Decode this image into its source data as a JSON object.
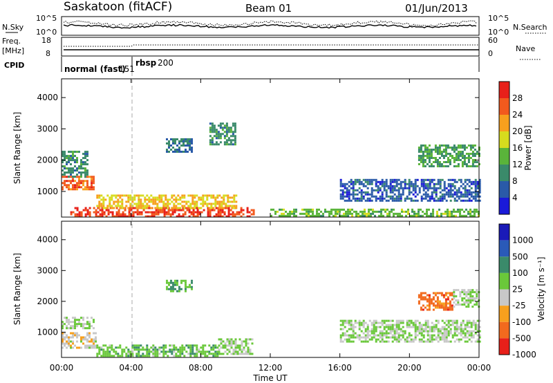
{
  "header": {
    "station": "Saskatoon (fitACF)",
    "beam": "Beam 01",
    "date": "01/Jun/2013"
  },
  "noise_panel": {
    "left_label": "N.Sky",
    "right_label": "N.Search",
    "left_ticks": [
      "10^5",
      "10^0"
    ],
    "right_ticks": [
      "10^5",
      "10^0"
    ]
  },
  "freq_panel": {
    "left_label": "Freq.",
    "left_unit": "[MHz]",
    "right_label": "Nave",
    "left_ticks": [
      "18",
      "8"
    ],
    "right_ticks": [
      "60",
      "0"
    ]
  },
  "cpid_panel": {
    "label": "CPID",
    "modes": [
      {
        "text": "normal (fast)",
        "code": "151"
      },
      {
        "text": "rbsp",
        "code": "200"
      }
    ]
  },
  "power_panel": {
    "ylabel": "Slant Range [km]",
    "colorbar_label": "Power [dB]",
    "colorbar_ticks": [
      "28",
      "24",
      "20",
      "16",
      "12",
      "8",
      "4"
    ],
    "colorbar_colors": [
      "#e8201a",
      "#f25a1e",
      "#f7a01e",
      "#d7dc1e",
      "#5ab43a",
      "#3a8a6a",
      "#2a5aa8",
      "#1a1ad8"
    ]
  },
  "velocity_panel": {
    "ylabel": "Slant Range [km]",
    "colorbar_label": "Velocity [m s⁻¹]",
    "colorbar_ticks": [
      "1000",
      "500",
      "100",
      "25",
      "-25",
      "-100",
      "-500",
      "-1000"
    ],
    "colorbar_colors": [
      "#1a1ab8",
      "#2a5ab8",
      "#3a8a6a",
      "#6ac83a",
      "#c8c8c8",
      "#f7a01e",
      "#f26a1e",
      "#e8201a"
    ]
  },
  "x_axis": {
    "label": "Time UT",
    "ticks": [
      "00:00",
      "04:00",
      "08:00",
      "12:00",
      "16:00",
      "20:00",
      "00:00"
    ]
  },
  "chart_data": [
    {
      "type": "heatmap",
      "title": "Power",
      "xlabel": "Time UT",
      "ylabel": "Slant Range [km]",
      "xlim_hours": [
        0,
        24
      ],
      "ylim": [
        180,
        4600
      ],
      "yticks": [
        1000,
        2000,
        3000,
        4000
      ],
      "colorbar": "Power [dB]",
      "color_range": [
        0,
        32
      ],
      "regions": [
        {
          "t0": 0.0,
          "t1": 1.8,
          "r0": 1100,
          "r1": 1500,
          "value": 26
        },
        {
          "t0": 0.0,
          "t1": 1.5,
          "r0": 1500,
          "r1": 2300,
          "value": 10
        },
        {
          "t0": 0.5,
          "t1": 11.0,
          "r0": 200,
          "r1": 500,
          "value": 28
        },
        {
          "t0": 2.0,
          "t1": 10.0,
          "r0": 500,
          "r1": 900,
          "value": 20
        },
        {
          "t0": 6.0,
          "t1": 7.5,
          "r0": 2300,
          "r1": 2700,
          "value": 8
        },
        {
          "t0": 8.5,
          "t1": 10.0,
          "r0": 2500,
          "r1": 3200,
          "value": 10
        },
        {
          "t0": 12.0,
          "t1": 24.0,
          "r0": 250,
          "r1": 450,
          "value": 14
        },
        {
          "t0": 16.0,
          "t1": 24.0,
          "r0": 700,
          "r1": 1400,
          "value": 6
        },
        {
          "t0": 20.5,
          "t1": 24.0,
          "r0": 1800,
          "r1": 2500,
          "value": 12
        }
      ]
    },
    {
      "type": "heatmap",
      "title": "Velocity",
      "xlabel": "Time UT",
      "ylabel": "Slant Range [km]",
      "xlim_hours": [
        0,
        24
      ],
      "ylim": [
        180,
        4600
      ],
      "yticks": [
        1000,
        2000,
        3000,
        4000
      ],
      "colorbar": "Velocity [m s⁻¹]",
      "color_range": [
        -1000,
        1000
      ],
      "regions": [
        {
          "t0": 0.0,
          "t1": 1.8,
          "r0": 1100,
          "r1": 1500,
          "value": 0
        },
        {
          "t0": 0.0,
          "t1": 2.0,
          "r0": 500,
          "r1": 1000,
          "value": -150
        },
        {
          "t0": 2.0,
          "t1": 9.0,
          "r0": 250,
          "r1": 600,
          "value": 150
        },
        {
          "t0": 6.0,
          "t1": 7.5,
          "r0": 2300,
          "r1": 2700,
          "value": 200
        },
        {
          "t0": 9.0,
          "t1": 11.0,
          "r0": 300,
          "r1": 800,
          "value": 0
        },
        {
          "t0": 16.0,
          "t1": 24.0,
          "r0": 700,
          "r1": 1400,
          "value": 0
        },
        {
          "t0": 20.5,
          "t1": 22.5,
          "r0": 1700,
          "r1": 2300,
          "value": -600
        },
        {
          "t0": 22.5,
          "t1": 24.0,
          "r0": 1800,
          "r1": 2400,
          "value": 0
        }
      ]
    }
  ]
}
